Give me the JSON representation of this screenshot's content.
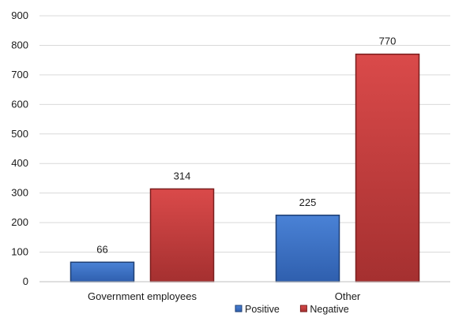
{
  "chart_data": {
    "type": "bar",
    "categories": [
      "Government employees",
      "Other"
    ],
    "series": [
      {
        "name": "Positive",
        "values": [
          66,
          225
        ],
        "color": "#3a6fc4",
        "edge": "#1f3f73"
      },
      {
        "name": "Negative",
        "values": [
          314,
          770
        ],
        "color": "#c93b3b",
        "edge": "#7a1e1e"
      }
    ],
    "ylim": [
      0,
      900
    ],
    "yticks": [
      0,
      100,
      200,
      300,
      400,
      500,
      600,
      700,
      800,
      900
    ],
    "grid": true,
    "legend": "bottom-center",
    "title": "",
    "xlabel": "",
    "ylabel": ""
  }
}
